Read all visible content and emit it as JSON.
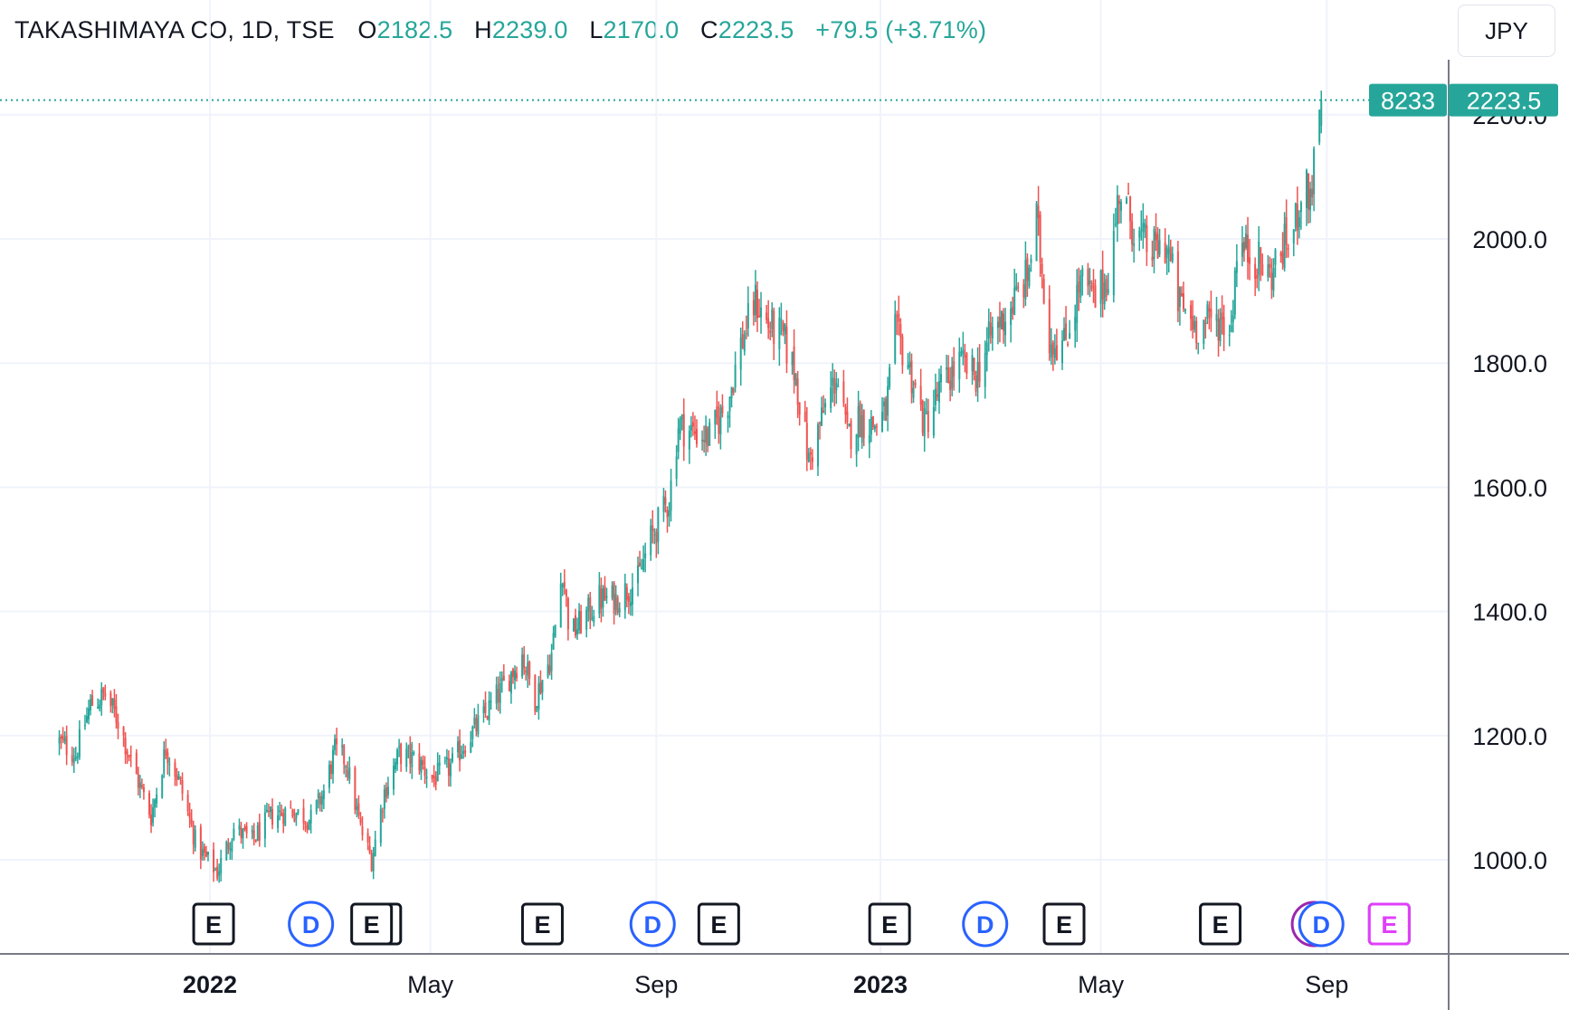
{
  "legend": {
    "symbol": "TAKASHIMAYA CO, 1D, TSE",
    "open_key": "O",
    "open": "2182.5",
    "high_key": "H",
    "high": "2239.0",
    "low_key": "L",
    "low": "2170.0",
    "close_key": "C",
    "close": "2223.5",
    "change": "+79.5 (+3.71%)"
  },
  "currency_button": "JPY",
  "last_price_tag": {
    "volume_label": "8233",
    "price_label": "2223.5"
  },
  "colors": {
    "up": "#26a69a",
    "down": "#ef5350",
    "grid": "#f0f3fa",
    "axis": "#787b86",
    "event_earnings": "#131722",
    "event_dividend": "#2962ff",
    "event_split": "#9c27b0",
    "event_future": "#e040fb"
  },
  "events": [
    {
      "type": "E",
      "date": "2022-01-03"
    },
    {
      "type": "E",
      "date": "2022-04-04"
    },
    {
      "type": "D",
      "date": "2022-02-25"
    },
    {
      "type": "E",
      "date": "2022-03-30"
    },
    {
      "type": "E",
      "date": "2022-07-01"
    },
    {
      "type": "D",
      "date": "2022-08-30"
    },
    {
      "type": "E",
      "date": "2022-10-05"
    },
    {
      "type": "E",
      "date": "2023-01-06"
    },
    {
      "type": "D",
      "date": "2023-02-27"
    },
    {
      "type": "E",
      "date": "2023-04-11"
    },
    {
      "type": "E",
      "date": "2023-07-05"
    },
    {
      "type": "split",
      "date": "2023-08-25"
    },
    {
      "type": "D",
      "date": "2023-08-29"
    },
    {
      "type": "E",
      "date": "2023-10-05"
    }
  ],
  "chart_data": {
    "type": "candlestick",
    "title": "TAKASHIMAYA CO, 1D, TSE",
    "currency": "JPY",
    "ylim": [
      890,
      2330
    ],
    "y_ticks": [
      "1000.0",
      "1200.0",
      "1400.0",
      "1600.0",
      "1800.0",
      "2000.0",
      "2200.0"
    ],
    "x_range": [
      "2021-10-11",
      "2023-11-11"
    ],
    "x_ticks": [
      {
        "label": "2022",
        "bold": true
      },
      {
        "label": "May",
        "bold": false
      },
      {
        "label": "Sep",
        "bold": false
      },
      {
        "label": "2023",
        "bold": true
      },
      {
        "label": "May",
        "bold": false
      },
      {
        "label": "Sep",
        "bold": false
      }
    ],
    "x_tick_dates": [
      "2022-01-01",
      "2022-05-01",
      "2022-09-01",
      "2023-01-01",
      "2023-05-01",
      "2023-09-01"
    ],
    "grid": true,
    "price_path": [
      [
        "2021-10-11",
        1190
      ],
      [
        "2021-10-20",
        1170
      ],
      [
        "2021-10-28",
        1250
      ],
      [
        "2021-11-05",
        1265
      ],
      [
        "2021-11-12",
        1225
      ],
      [
        "2021-11-20",
        1150
      ],
      [
        "2021-11-30",
        1070
      ],
      [
        "2021-12-08",
        1180
      ],
      [
        "2021-12-15",
        1130
      ],
      [
        "2021-12-25",
        1020
      ],
      [
        "2022-01-05",
        980
      ],
      [
        "2022-01-14",
        1050
      ],
      [
        "2022-01-24",
        1030
      ],
      [
        "2022-02-03",
        1070
      ],
      [
        "2022-02-14",
        1080
      ],
      [
        "2022-02-25",
        1065
      ],
      [
        "2022-03-04",
        1110
      ],
      [
        "2022-03-10",
        1175
      ],
      [
        "2022-03-16",
        1160
      ],
      [
        "2022-03-24",
        1050
      ],
      [
        "2022-03-30",
        1000
      ],
      [
        "2022-04-06",
        1110
      ],
      [
        "2022-04-14",
        1170
      ],
      [
        "2022-04-24",
        1160
      ],
      [
        "2022-05-02",
        1130
      ],
      [
        "2022-05-12",
        1150
      ],
      [
        "2022-05-20",
        1190
      ],
      [
        "2022-05-30",
        1230
      ],
      [
        "2022-06-10",
        1280
      ],
      [
        "2022-06-20",
        1330
      ],
      [
        "2022-06-27",
        1260
      ],
      [
        "2022-07-06",
        1330
      ],
      [
        "2022-07-12",
        1470
      ],
      [
        "2022-07-16",
        1360
      ],
      [
        "2022-07-24",
        1390
      ],
      [
        "2022-08-01",
        1420
      ],
      [
        "2022-08-10",
        1420
      ],
      [
        "2022-08-22",
        1450
      ],
      [
        "2022-08-28",
        1510
      ],
      [
        "2022-09-08",
        1580
      ],
      [
        "2022-09-13",
        1700
      ],
      [
        "2022-09-20",
        1690
      ],
      [
        "2022-09-30",
        1680
      ],
      [
        "2022-10-10",
        1740
      ],
      [
        "2022-10-17",
        1830
      ],
      [
        "2022-10-25",
        1900
      ],
      [
        "2022-11-01",
        1860
      ],
      [
        "2022-11-09",
        1840
      ],
      [
        "2022-11-16",
        1780
      ],
      [
        "2022-11-23",
        1640
      ],
      [
        "2022-11-30",
        1710
      ],
      [
        "2022-12-08",
        1780
      ],
      [
        "2022-12-14",
        1680
      ],
      [
        "2022-12-20",
        1710
      ],
      [
        "2022-12-29",
        1700
      ],
      [
        "2023-01-04",
        1720
      ],
      [
        "2023-01-09",
        1850
      ],
      [
        "2023-01-16",
        1800
      ],
      [
        "2023-01-25",
        1700
      ],
      [
        "2023-02-03",
        1760
      ],
      [
        "2023-02-13",
        1800
      ],
      [
        "2023-02-22",
        1780
      ],
      [
        "2023-03-03",
        1850
      ],
      [
        "2023-03-13",
        1890
      ],
      [
        "2023-03-22",
        1940
      ],
      [
        "2023-03-27",
        2030
      ],
      [
        "2023-04-03",
        1840
      ],
      [
        "2023-04-11",
        1830
      ],
      [
        "2023-04-20",
        1930
      ],
      [
        "2023-04-28",
        1900
      ],
      [
        "2023-05-06",
        1950
      ],
      [
        "2023-05-11",
        2080
      ],
      [
        "2023-05-20",
        2010
      ],
      [
        "2023-05-28",
        1980
      ],
      [
        "2023-06-06",
        1990
      ],
      [
        "2023-06-12",
        1900
      ],
      [
        "2023-06-22",
        1860
      ],
      [
        "2023-07-03",
        1870
      ],
      [
        "2023-07-11",
        1860
      ],
      [
        "2023-07-14",
        1990
      ],
      [
        "2023-07-24",
        1970
      ],
      [
        "2023-08-01",
        1940
      ],
      [
        "2023-08-09",
        1990
      ],
      [
        "2023-08-14",
        2010
      ],
      [
        "2023-08-18",
        2080
      ],
      [
        "2023-08-23",
        2070
      ],
      [
        "2023-08-28",
        2182.5
      ]
    ],
    "last_candle": {
      "date": "2023-08-29",
      "open": 2182.5,
      "high": 2239.0,
      "low": 2170.0,
      "close": 2223.5
    },
    "last_volume": 8233
  }
}
